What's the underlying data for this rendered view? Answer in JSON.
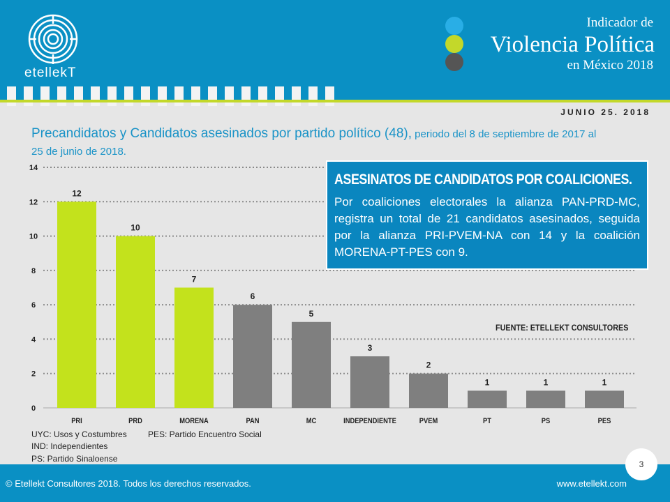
{
  "header": {
    "logo_text": "etellekT",
    "indicator_line1": "Indicador de",
    "indicator_line2": "Violencia Política",
    "indicator_line3": "en México 2018",
    "date": "JUNIO 25. 2018"
  },
  "title": {
    "main": "Precandidatos y Candidatos asesinados por partido político (48),",
    "sub": " periodo del 8 de septiembre de 2017 al 25 de junio de 2018."
  },
  "infobox": {
    "heading": "ASESINATOS DE CANDIDATOS POR COALICIONES.",
    "body": "Por coaliciones electorales la alianza PAN-PRD-MC, registra un total de 21 candidatos asesinados, seguida por la alianza PRI-PVEM-NA con 14 y la coalición MORENA-PT-PES con 9."
  },
  "source": "FUENTE: ETELLEKT CONSULTORES",
  "legend": [
    "UYC: Usos y Costumbres",
    "PES: Partido Encuentro Social",
    "IND: Independientes",
    "PS: Partido Sinaloense"
  ],
  "footer": {
    "copyright": "© Etellekt Consultores 2018. Todos los derechos reservados.",
    "website": "www.etellekt.com",
    "page": "3"
  },
  "colors": {
    "blue": "#0a90c4",
    "green": "#c3d82a",
    "gray": "#7f7f7f"
  },
  "chart_data": {
    "type": "bar",
    "title": "Precandidatos y Candidatos asesinados por partido político (48)",
    "categories": [
      "PRI",
      "PRD",
      "MORENA",
      "PAN",
      "MC",
      "INDEPENDIENTE",
      "PVEM",
      "PT",
      "PS",
      "PES"
    ],
    "values": [
      12,
      10,
      7,
      6,
      5,
      3,
      2,
      1,
      1,
      1
    ],
    "bar_colors": [
      "#c3e21c",
      "#c3e21c",
      "#c3e21c",
      "#7f7f7f",
      "#7f7f7f",
      "#7f7f7f",
      "#7f7f7f",
      "#7f7f7f",
      "#7f7f7f",
      "#7f7f7f"
    ],
    "yticks": [
      0,
      2,
      4,
      6,
      8,
      10,
      12,
      14
    ],
    "ylim": [
      0,
      14
    ],
    "grid": true,
    "xlabel": "",
    "ylabel": ""
  }
}
